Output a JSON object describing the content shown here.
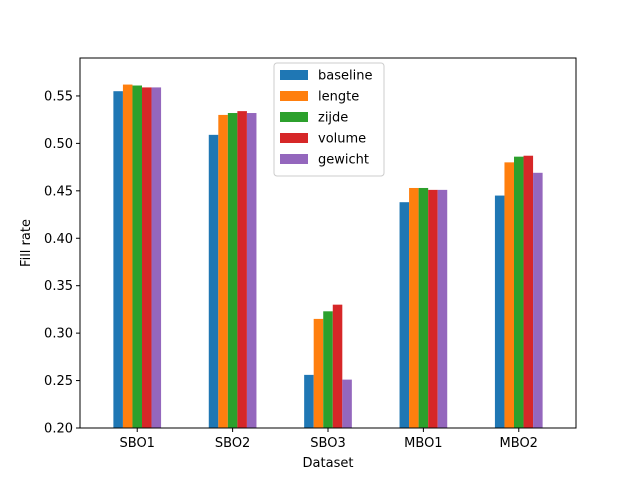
{
  "chart_data": {
    "type": "bar",
    "title": "",
    "xlabel": "Dataset",
    "ylabel": "Fill rate",
    "categories": [
      "SBO1",
      "SBO2",
      "SBO3",
      "MBO1",
      "MBO2"
    ],
    "ylim": [
      0.2,
      0.59
    ],
    "yticks": [
      "0.20",
      "0.25",
      "0.30",
      "0.35",
      "0.40",
      "0.45",
      "0.50",
      "0.55"
    ],
    "grid": false,
    "legend_position": "top-center",
    "series": [
      {
        "name": "baseline",
        "color": "#1f77b4",
        "values": [
          0.555,
          0.509,
          0.256,
          0.438,
          0.445
        ]
      },
      {
        "name": "lengte",
        "color": "#ff7f0e",
        "values": [
          0.562,
          0.53,
          0.315,
          0.453,
          0.48
        ]
      },
      {
        "name": "zijde",
        "color": "#2ca02c",
        "values": [
          0.561,
          0.532,
          0.323,
          0.453,
          0.486
        ]
      },
      {
        "name": "volume",
        "color": "#d62728",
        "values": [
          0.559,
          0.534,
          0.33,
          0.451,
          0.487
        ]
      },
      {
        "name": "gewicht",
        "color": "#9467bd",
        "values": [
          0.559,
          0.532,
          0.251,
          0.451,
          0.469
        ]
      }
    ]
  }
}
